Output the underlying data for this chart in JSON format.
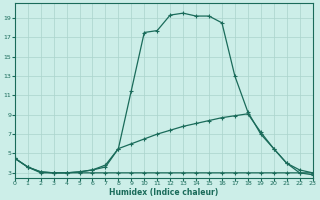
{
  "xlabel": "Humidex (Indice chaleur)",
  "bg_color": "#cceee8",
  "line_color": "#1a6b5a",
  "grid_color": "#aad4cc",
  "xlim": [
    0,
    23
  ],
  "ylim": [
    2.5,
    20.5
  ],
  "xticks": [
    0,
    1,
    2,
    3,
    4,
    5,
    6,
    7,
    8,
    9,
    10,
    11,
    12,
    13,
    14,
    15,
    16,
    17,
    18,
    19,
    20,
    21,
    22,
    23
  ],
  "yticks": [
    3,
    5,
    7,
    9,
    11,
    13,
    15,
    17,
    19
  ],
  "line1_x": [
    0,
    1,
    2,
    3,
    4,
    5,
    6,
    7,
    8,
    9,
    10,
    11,
    12,
    13,
    14,
    15,
    16,
    17,
    18,
    19,
    20,
    21,
    22,
    23
  ],
  "line1_y": [
    4.5,
    3.6,
    3.0,
    3.0,
    3.0,
    3.0,
    3.0,
    3.0,
    3.0,
    3.0,
    3.0,
    3.0,
    3.0,
    3.0,
    3.0,
    3.0,
    3.0,
    3.0,
    3.0,
    3.0,
    3.0,
    3.0,
    3.0,
    3.0
  ],
  "line2_x": [
    0,
    1,
    2,
    3,
    4,
    5,
    6,
    7,
    8,
    9,
    10,
    11,
    12,
    13,
    14,
    15,
    16,
    17,
    18,
    19,
    20,
    21,
    22,
    23
  ],
  "line2_y": [
    4.5,
    3.6,
    3.1,
    3.0,
    3.0,
    3.1,
    3.3,
    3.6,
    5.5,
    6.0,
    6.5,
    7.0,
    7.4,
    7.8,
    8.1,
    8.4,
    8.7,
    8.9,
    9.1,
    7.2,
    5.5,
    4.0,
    3.3,
    3.0
  ],
  "line3_x": [
    0,
    1,
    2,
    3,
    4,
    5,
    6,
    7,
    8,
    9,
    10,
    11,
    12,
    13,
    14,
    15,
    16,
    17,
    18,
    19,
    20,
    21,
    22,
    23
  ],
  "line3_y": [
    4.5,
    3.6,
    3.1,
    3.0,
    3.0,
    3.1,
    3.3,
    3.8,
    5.5,
    11.5,
    17.5,
    17.7,
    19.3,
    19.5,
    19.2,
    19.2,
    18.5,
    13.0,
    9.3,
    7.0,
    5.5,
    4.0,
    3.0,
    2.8
  ]
}
